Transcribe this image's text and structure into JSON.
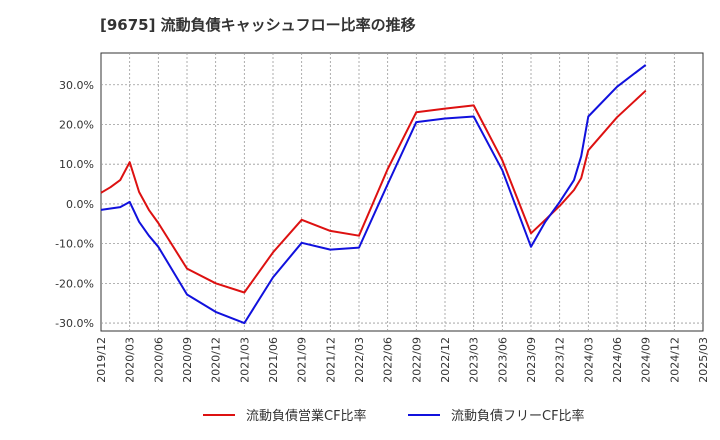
{
  "chart_data": {
    "type": "line",
    "title": "[9675]  流動負債キャッシュフロー比率の推移",
    "xlabel": "",
    "ylabel": "",
    "x_ticks": [
      "2019/12",
      "2020/03",
      "2020/06",
      "2020/09",
      "2020/12",
      "2021/03",
      "2021/06",
      "2021/09",
      "2021/12",
      "2022/03",
      "2022/06",
      "2022/09",
      "2022/12",
      "2023/03",
      "2023/06",
      "2023/09",
      "2023/12",
      "2024/03",
      "2024/06",
      "2024/09",
      "2024/12",
      "2025/03"
    ],
    "y_ticks": [
      30,
      20,
      10,
      0,
      -10,
      -20,
      -30
    ],
    "y_tick_labels": [
      "30.0%",
      "20.0%",
      "10.0%",
      "0.0%",
      "-10.0%",
      "-20.0%",
      "-30.0%"
    ],
    "ylim": [
      -32,
      38
    ],
    "xlim": [
      0,
      21
    ],
    "grid": true,
    "legend_position": "bottom",
    "series": [
      {
        "name": "流動負債営業CF比率",
        "color": "#dd1111",
        "points": [
          [
            0,
            2.8
          ],
          [
            0.33,
            4.2
          ],
          [
            0.67,
            6.0
          ],
          [
            1,
            10.5
          ],
          [
            1.33,
            3.0
          ],
          [
            1.67,
            -1.5
          ],
          [
            2,
            -4.8
          ],
          [
            3,
            -16.3
          ],
          [
            4,
            -20.0
          ],
          [
            5,
            -22.3
          ],
          [
            6,
            -12.2
          ],
          [
            7,
            -4.0
          ],
          [
            8,
            -6.8
          ],
          [
            9,
            -8.0
          ],
          [
            10,
            8.8
          ],
          [
            11,
            23.1
          ],
          [
            12,
            24.0
          ],
          [
            13,
            24.8
          ],
          [
            14,
            11.0
          ],
          [
            15,
            -7.4
          ],
          [
            15.5,
            -4.0
          ],
          [
            16,
            -0.5
          ],
          [
            16.5,
            3.5
          ],
          [
            16.75,
            6.5
          ],
          [
            17,
            13.5
          ],
          [
            18,
            21.8
          ],
          [
            19,
            28.5
          ]
        ]
      },
      {
        "name": "流動負債フリーCF比率",
        "color": "#1111dd",
        "points": [
          [
            0,
            -1.5
          ],
          [
            0.67,
            -0.8
          ],
          [
            1,
            0.5
          ],
          [
            1.33,
            -4.5
          ],
          [
            1.67,
            -8.0
          ],
          [
            2,
            -10.8
          ],
          [
            3,
            -22.8
          ],
          [
            4,
            -27.2
          ],
          [
            5,
            -30.0
          ],
          [
            6,
            -18.5
          ],
          [
            7,
            -9.8
          ],
          [
            8,
            -11.5
          ],
          [
            9,
            -11.0
          ],
          [
            10,
            5.0
          ],
          [
            11,
            20.6
          ],
          [
            12,
            21.5
          ],
          [
            13,
            22.0
          ],
          [
            14,
            8.5
          ],
          [
            15,
            -10.8
          ],
          [
            15.5,
            -4.5
          ],
          [
            16,
            0.5
          ],
          [
            16.5,
            6.0
          ],
          [
            16.75,
            12.0
          ],
          [
            17,
            22.0
          ],
          [
            18,
            29.5
          ],
          [
            19,
            35.0
          ]
        ]
      }
    ]
  }
}
